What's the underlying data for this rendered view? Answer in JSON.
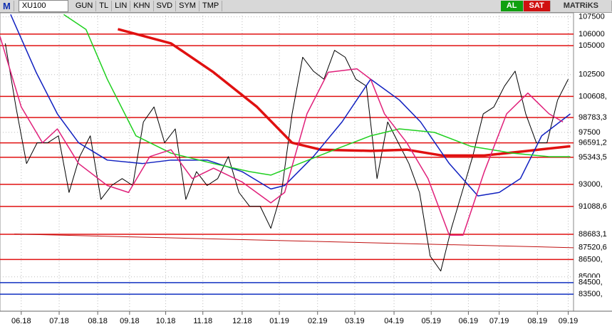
{
  "toolbar": {
    "logo": "M",
    "symbol": "XU100",
    "buttons": [
      "GUN",
      "TL",
      "LIN",
      "KHN",
      "SVD",
      "SYM",
      "TMP"
    ],
    "buy": "AL",
    "sell": "SAT",
    "brand": "MATRiKS"
  },
  "chart_data": {
    "type": "line",
    "xlim": [
      -0.5,
      53.5
    ],
    "ylim": [
      82025,
      107844
    ],
    "xticks": [
      {
        "value": 1.5,
        "label": "06.18"
      },
      {
        "value": 5.07,
        "label": "07.18"
      },
      {
        "value": 8.7,
        "label": "08.18"
      },
      {
        "value": 11.7,
        "label": "09.18"
      },
      {
        "value": 15.1,
        "label": "10.18"
      },
      {
        "value": 18.6,
        "label": "11.18"
      },
      {
        "value": 22.3,
        "label": "12.18"
      },
      {
        "value": 25.8,
        "label": "01.19"
      },
      {
        "value": 29.4,
        "label": "02.19"
      },
      {
        "value": 32.9,
        "label": "03.19"
      },
      {
        "value": 36.6,
        "label": "04.19"
      },
      {
        "value": 40.1,
        "label": "05.19"
      },
      {
        "value": 43.6,
        "label": "06.19"
      },
      {
        "value": 46.5,
        "label": "07.19"
      },
      {
        "value": 50.1,
        "label": "08.19"
      },
      {
        "value": 53.0,
        "label": "09.19"
      }
    ],
    "yticks": [
      107500,
      102500,
      97500,
      85000
    ],
    "grid": true,
    "levels": [
      {
        "value": 106000,
        "label": "106000",
        "color": "#e01010"
      },
      {
        "value": 105000,
        "label": "105000",
        "color": "#e01010"
      },
      {
        "value": 100608,
        "label": "100608,",
        "color": "#e01010"
      },
      {
        "value": 98783.3,
        "label": "98783,3",
        "color": "#e01010"
      },
      {
        "value": 96591.2,
        "label": "96591,2",
        "color": "#e01010"
      },
      {
        "value": 95343.5,
        "label": "95343,5",
        "color": "#e01010"
      },
      {
        "value": 93000,
        "label": "93000,",
        "color": "#e01010"
      },
      {
        "value": 91088.6,
        "label": "91088,6",
        "color": "#e01010"
      },
      {
        "value": 88683.1,
        "label": "88683,1",
        "color": "#e01010"
      },
      {
        "value": 86500,
        "label": "86500,",
        "color": "#e01010"
      },
      {
        "value": 84500,
        "label": "84500,",
        "color": "#1030c0"
      },
      {
        "value": 83500,
        "label": "83500,",
        "color": "#1030c0"
      }
    ],
    "trendline": {
      "x": [
        0.85,
        53.5
      ],
      "values": [
        88700,
        87520.6
      ],
      "label": "87520,6",
      "color": "#c01010"
    },
    "series": [
      {
        "color": "#000000",
        "width": 1,
        "x": [
          0,
          1,
          2,
          3,
          4,
          5,
          6,
          7,
          8,
          9,
          10,
          11,
          12,
          13,
          14,
          15,
          16,
          17,
          18,
          19,
          20,
          21,
          22,
          23,
          24,
          25,
          26,
          27,
          28,
          29,
          30,
          31,
          32,
          33,
          34,
          35,
          36,
          37,
          38,
          39,
          40,
          41,
          42,
          43,
          44,
          45,
          46,
          47,
          48,
          49,
          50,
          51,
          52,
          53
        ],
        "values": [
          105200,
          99700,
          94800,
          96600,
          96600,
          97200,
          92300,
          95400,
          97200,
          91700,
          92900,
          93500,
          92900,
          98400,
          99700,
          96600,
          97800,
          91700,
          94100,
          92900,
          93500,
          95400,
          92300,
          91100,
          91100,
          89200,
          92300,
          99100,
          104000,
          102800,
          102100,
          104600,
          104000,
          102100,
          101500,
          93500,
          98400,
          96600,
          94800,
          92300,
          86800,
          85500,
          89200,
          92300,
          95400,
          99100,
          99700,
          101500,
          102800,
          99100,
          96600,
          96600,
          100300,
          102100
        ]
      },
      {
        "color": "#e01010",
        "width": 3.5,
        "x": [
          10.6,
          15.6,
          19.6,
          23.7,
          27.0,
          29.7,
          34.4,
          37.8,
          41.1,
          45.1,
          49.2,
          53.2
        ],
        "values": [
          106430,
          105200,
          102700,
          99700,
          96600,
          96000,
          95900,
          96000,
          95500,
          95500,
          95900,
          96300
        ]
      },
      {
        "color": "#1020c0",
        "width": 1.5,
        "x": [
          0.5,
          2.9,
          4.9,
          6.9,
          9.6,
          12.9,
          15.6,
          19.0,
          22.3,
          25.0,
          26.3,
          29.0,
          31.7,
          34.4,
          37.1,
          39.1,
          41.8,
          44.5,
          46.5,
          48.5,
          50.5,
          53.2
        ],
        "values": [
          107700,
          102700,
          99100,
          96600,
          95100,
          94800,
          95100,
          95100,
          94100,
          92600,
          92900,
          95400,
          98400,
          102100,
          100300,
          98400,
          94800,
          92000,
          92300,
          93500,
          97200,
          99100
        ]
      },
      {
        "color": "#20d020",
        "width": 1.5,
        "x": [
          5.5,
          7.6,
          9.6,
          12.3,
          15.6,
          19.6,
          23.0,
          25.0,
          27.7,
          31.0,
          34.4,
          37.1,
          40.4,
          43.8,
          47.8,
          51.2,
          53.2
        ],
        "values": [
          107700,
          106400,
          102100,
          97200,
          95700,
          94800,
          94100,
          93800,
          94800,
          96000,
          97200,
          97800,
          97500,
          96300,
          95700,
          95400,
          95400
        ]
      },
      {
        "color": "#e0207a",
        "width": 1.5,
        "x": [
          -0.5,
          1.5,
          3.5,
          4.9,
          6.9,
          9.6,
          11.6,
          13.6,
          15.6,
          17.6,
          19.6,
          22.3,
          25.0,
          26.3,
          28.4,
          30.4,
          33.1,
          34.4,
          35.7,
          37.8,
          39.8,
          41.8,
          43.1,
          45.1,
          47.2,
          49.2,
          51.2,
          52.5
        ],
        "values": [
          105800,
          99700,
          96600,
          97800,
          94800,
          92900,
          92300,
          95400,
          96000,
          93500,
          94400,
          93200,
          91400,
          92300,
          99100,
          102700,
          103000,
          102100,
          99100,
          96600,
          93500,
          88600,
          88600,
          94100,
          99100,
          100900,
          99100,
          98400
        ]
      }
    ]
  }
}
